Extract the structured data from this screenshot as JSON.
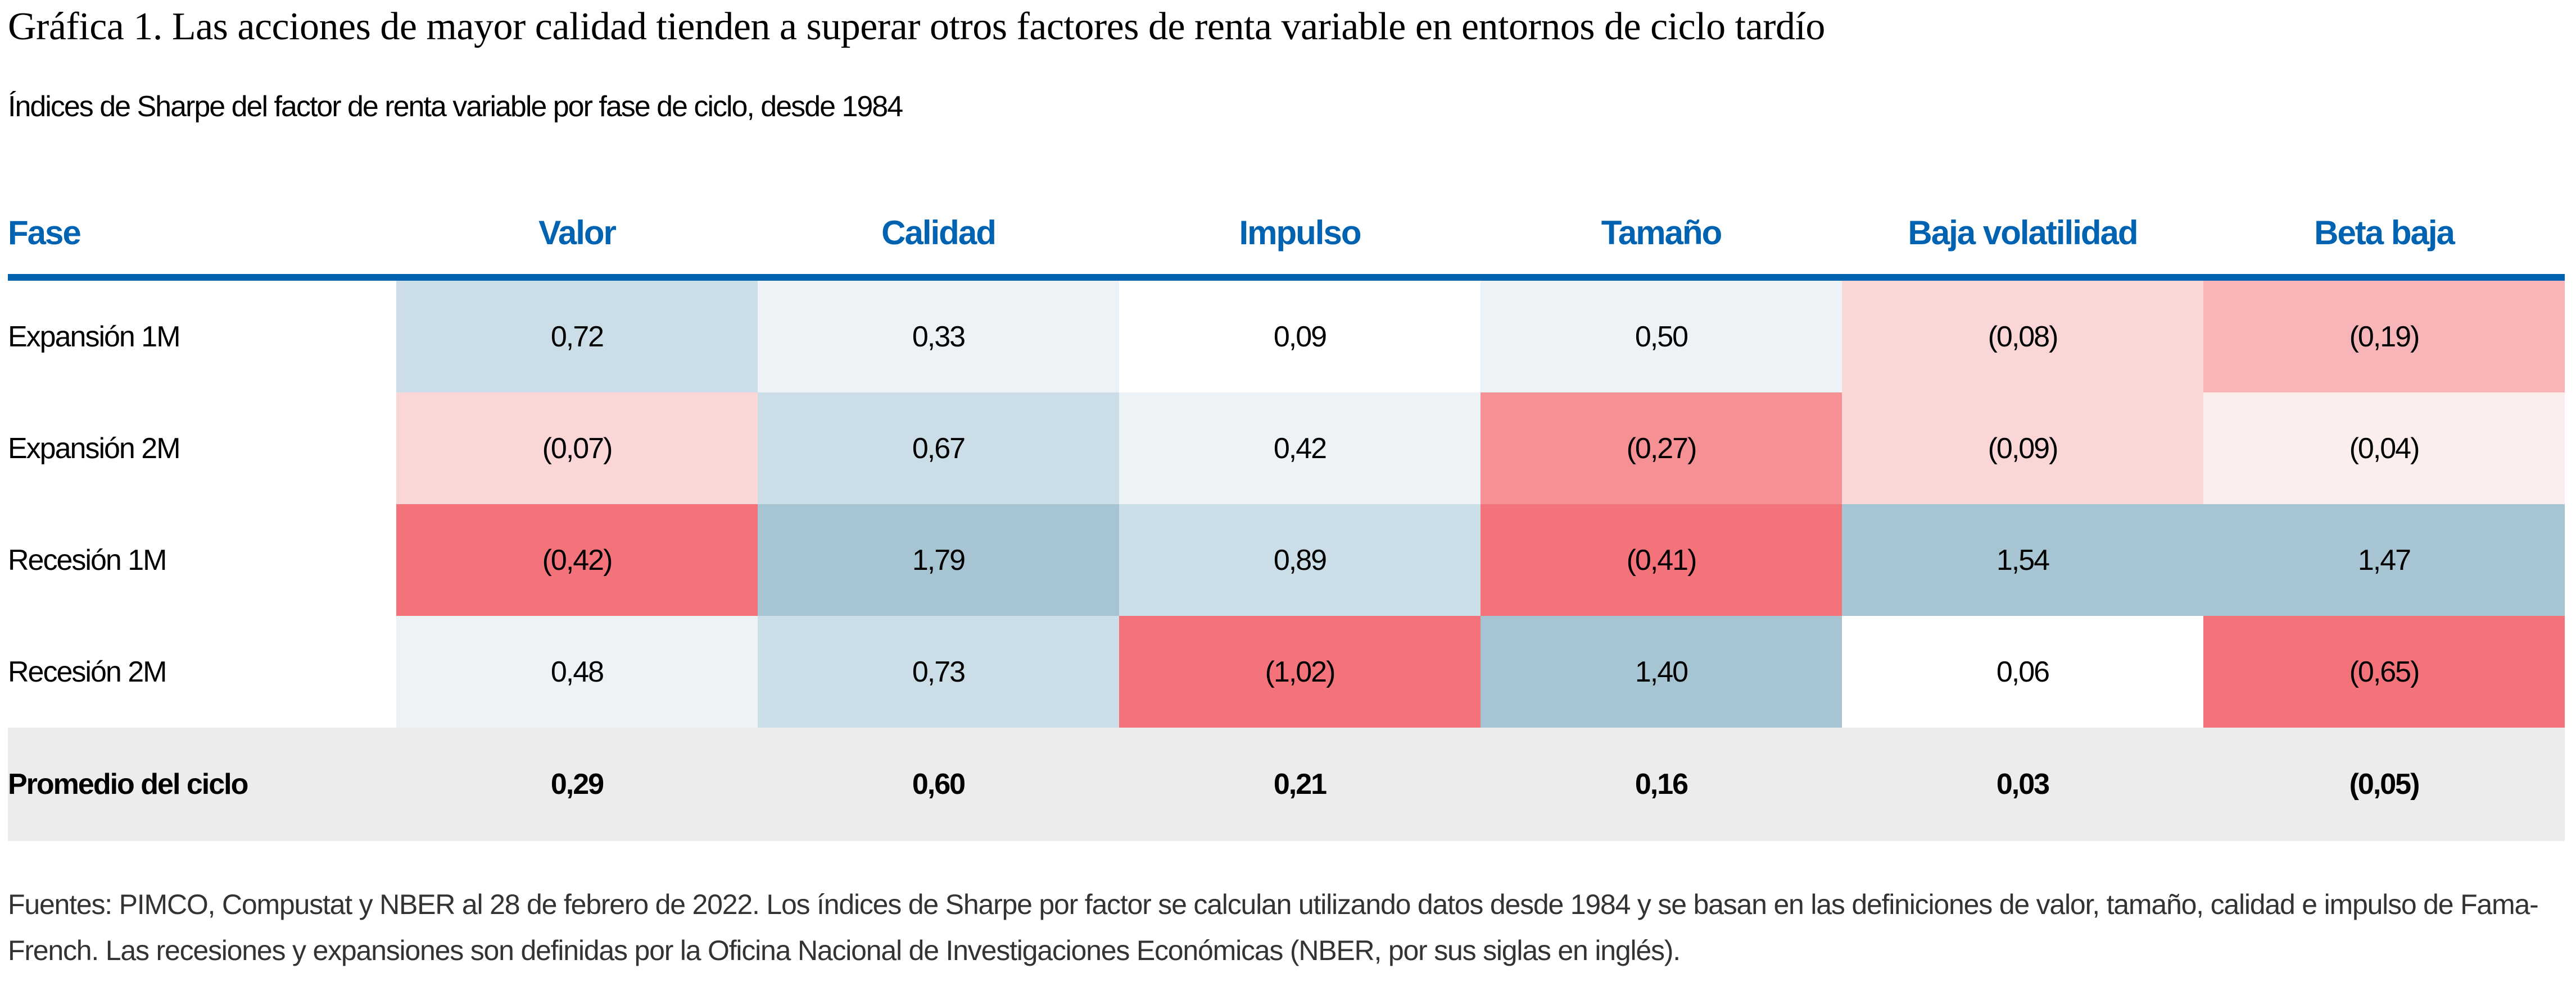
{
  "title": "Gráfica 1. Las acciones de mayor calidad tienden a superar otros factores de renta variable en entornos de ciclo tardío",
  "subtitle": "Índices de Sharpe del factor de renta variable por fase de ciclo, desde 1984",
  "chart_data": {
    "type": "table",
    "columns": [
      "Fase",
      "Valor",
      "Calidad",
      "Impulso",
      "Tamaño",
      "Baja volatilidad",
      "Beta baja"
    ],
    "rows": [
      {
        "label": "Expansión 1M",
        "values": [
          "0,72",
          "0,33",
          "0,09",
          "0,50",
          "(0,08)",
          "(0,19)"
        ],
        "colors": [
          "#cbdde6",
          "#edf2f7",
          "#ffffff",
          "#edf2f7",
          "#fad6d7",
          "#f8b5b7"
        ]
      },
      {
        "label": "Expansión 2M",
        "values": [
          "(0,07)",
          "0,67",
          "0,42",
          "(0,27)",
          "(0,09)",
          "(0,04)"
        ],
        "colors": [
          "#fad6d7",
          "#cbdde6",
          "#edf2f7",
          "#f59094",
          "#fad6d7",
          "#fdeeee"
        ]
      },
      {
        "label": "Recesión 1M",
        "values": [
          "(0,42)",
          "1,79",
          "0,89",
          "(0,41)",
          "1,54",
          "1,47"
        ],
        "colors": [
          "#f4737a",
          "#a7c4d2",
          "#cbdde6",
          "#f4737a",
          "#a7c4d2",
          "#a7c4d2"
        ]
      },
      {
        "label": "Recesión 2M",
        "values": [
          "0,48",
          "0,73",
          "(1,02)",
          "1,40",
          "0,06",
          "(0,65)"
        ],
        "colors": [
          "#edf2f7",
          "#cbdde6",
          "#f4737a",
          "#a7c4d2",
          "#ffffff",
          "#f4737a"
        ]
      }
    ],
    "average_row": {
      "label": "Promedio del ciclo",
      "values": [
        "0,29",
        "0,60",
        "0,21",
        "0,16",
        "0,03",
        "(0,05)"
      ]
    },
    "header_color": "#0063b1",
    "average_row_color": "#ececec"
  },
  "footer": "Fuentes: PIMCO, Compustat y NBER al 28 de febrero de 2022. Los índices de Sharpe por factor se calculan utilizando datos desde 1984 y se basan en las definiciones de valor, tamaño, calidad e impulso de Fama-French. Las recesiones y expansiones son definidas por la Oficina Nacional de Investigaciones Económicas (NBER, por sus siglas en inglés)."
}
